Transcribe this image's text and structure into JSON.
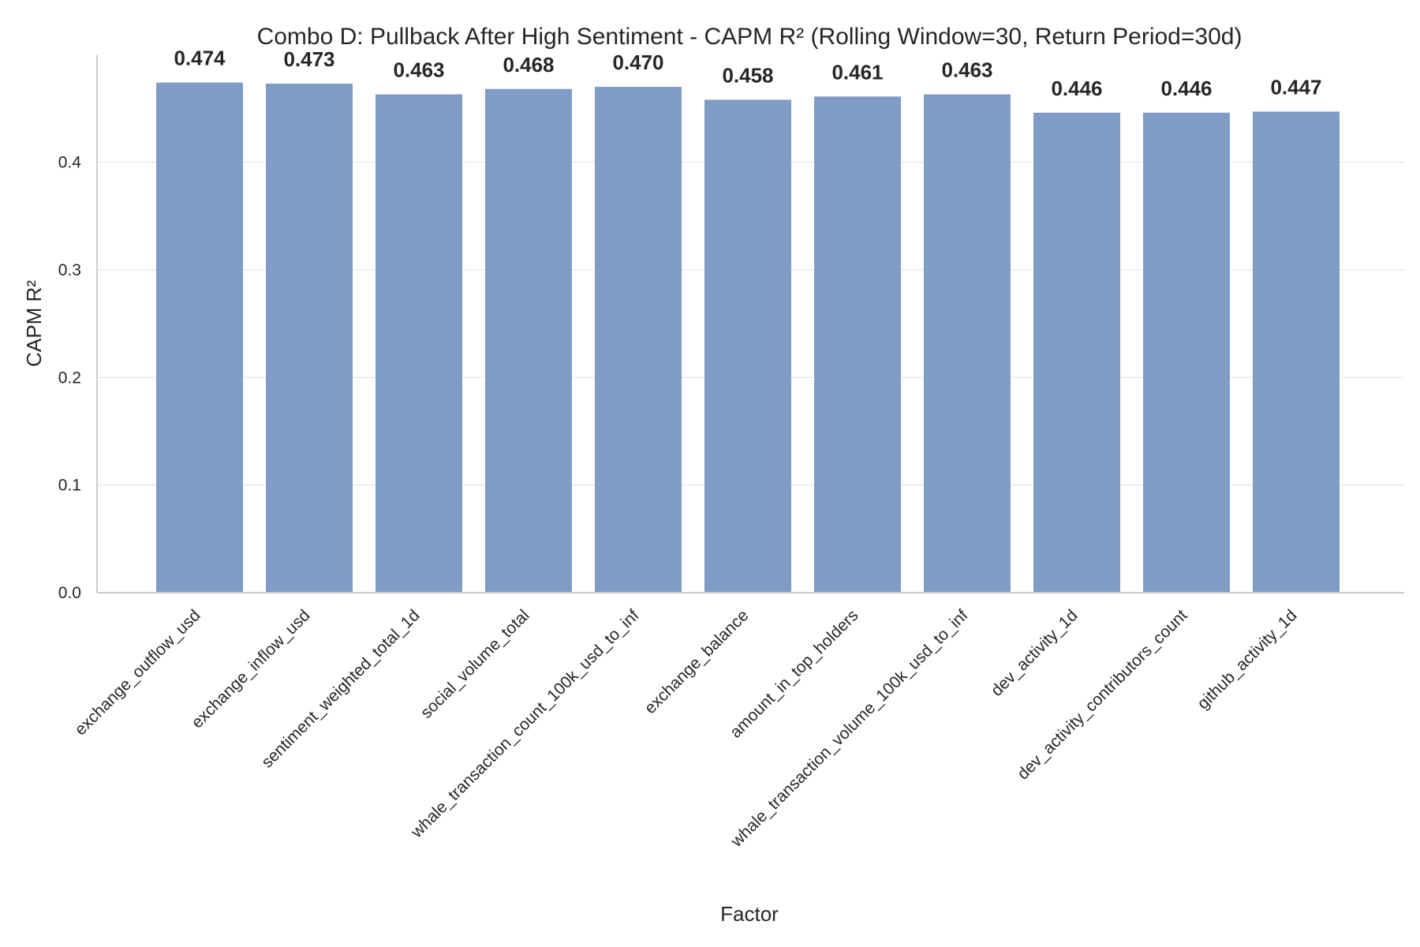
{
  "chart_data": {
    "type": "bar",
    "title": "Combo D: Pullback After High Sentiment - CAPM R² (Rolling Window=30, Return Period=30d)",
    "xlabel": "Factor",
    "ylabel": "CAPM R²",
    "categories": [
      "exchange_outflow_usd",
      "exchange_inflow_usd",
      "sentiment_weighted_total_1d",
      "social_volume_total",
      "whale_transaction_count_100k_usd_to_inf",
      "exchange_balance",
      "amount_in_top_holders",
      "whale_transaction_volume_100k_usd_to_inf",
      "dev_activity_1d",
      "dev_activity_contributors_count",
      "github_activity_1d"
    ],
    "values": [
      0.474,
      0.473,
      0.463,
      0.468,
      0.47,
      0.458,
      0.461,
      0.463,
      0.446,
      0.446,
      0.447
    ],
    "value_labels": [
      "0.474",
      "0.473",
      "0.463",
      "0.468",
      "0.470",
      "0.458",
      "0.461",
      "0.463",
      "0.446",
      "0.446",
      "0.447"
    ],
    "yticks": [
      "0.0",
      "0.1",
      "0.2",
      "0.3",
      "0.4"
    ],
    "ylim": [
      0,
      0.5
    ],
    "grid": "horizontal",
    "bar_color": "#7f9cc7",
    "text_color": "#262626"
  }
}
